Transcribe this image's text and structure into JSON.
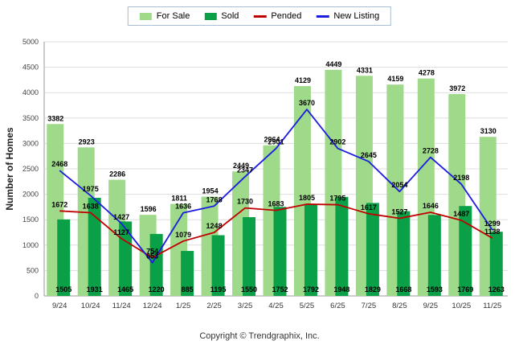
{
  "legend": {
    "items": [
      {
        "label": "For Sale",
        "type": "bar",
        "color": "#9fd98a"
      },
      {
        "label": "Sold",
        "type": "bar",
        "color": "#0aa047"
      },
      {
        "label": "Pended",
        "type": "line",
        "color": "#c00000"
      },
      {
        "label": "New Listing",
        "type": "line",
        "color": "#1c1ce0"
      }
    ]
  },
  "chart_data": {
    "type": "bar",
    "subtype": "grouped-bars-with-lines",
    "categories": [
      "9/24",
      "10/24",
      "11/24",
      "12/24",
      "1/25",
      "2/25",
      "3/25",
      "4/25",
      "5/25",
      "6/25",
      "7/25",
      "8/25",
      "9/25",
      "10/25",
      "11/25"
    ],
    "series": [
      {
        "name": "For Sale",
        "type": "bar",
        "color": "#9fd98a",
        "values": [
          3382,
          2923,
          2286,
          1596,
          1811,
          1954,
          2449,
          2964,
          4129,
          4449,
          4331,
          4159,
          4278,
          3972,
          3130
        ]
      },
      {
        "name": "Sold",
        "type": "bar",
        "color": "#0aa047",
        "values": [
          1505,
          1931,
          1465,
          1220,
          885,
          1195,
          1550,
          1752,
          1792,
          1948,
          1829,
          1668,
          1593,
          1769,
          1263
        ]
      },
      {
        "name": "Pended",
        "type": "line",
        "color": "#c00000",
        "values": [
          1672,
          1638,
          1127,
          754,
          1079,
          1248,
          1730,
          1683,
          1805,
          1795,
          1617,
          1527,
          1646,
          1487,
          1138
        ]
      },
      {
        "name": "New Listing",
        "type": "line",
        "color": "#1c1ce0",
        "values": [
          2468,
          1975,
          1427,
          653,
          1636,
          1768,
          2347,
          2901,
          3670,
          2902,
          2645,
          2054,
          2728,
          2198,
          1299
        ]
      }
    ],
    "title": "",
    "xlabel": "",
    "ylabel": "Number of Homes",
    "ylim": [
      0,
      5000
    ],
    "ytick_step": 500,
    "grid": true,
    "legend_position": "top-center"
  },
  "footer": {
    "copyright": "Copyright © Trendgraphix, Inc."
  }
}
